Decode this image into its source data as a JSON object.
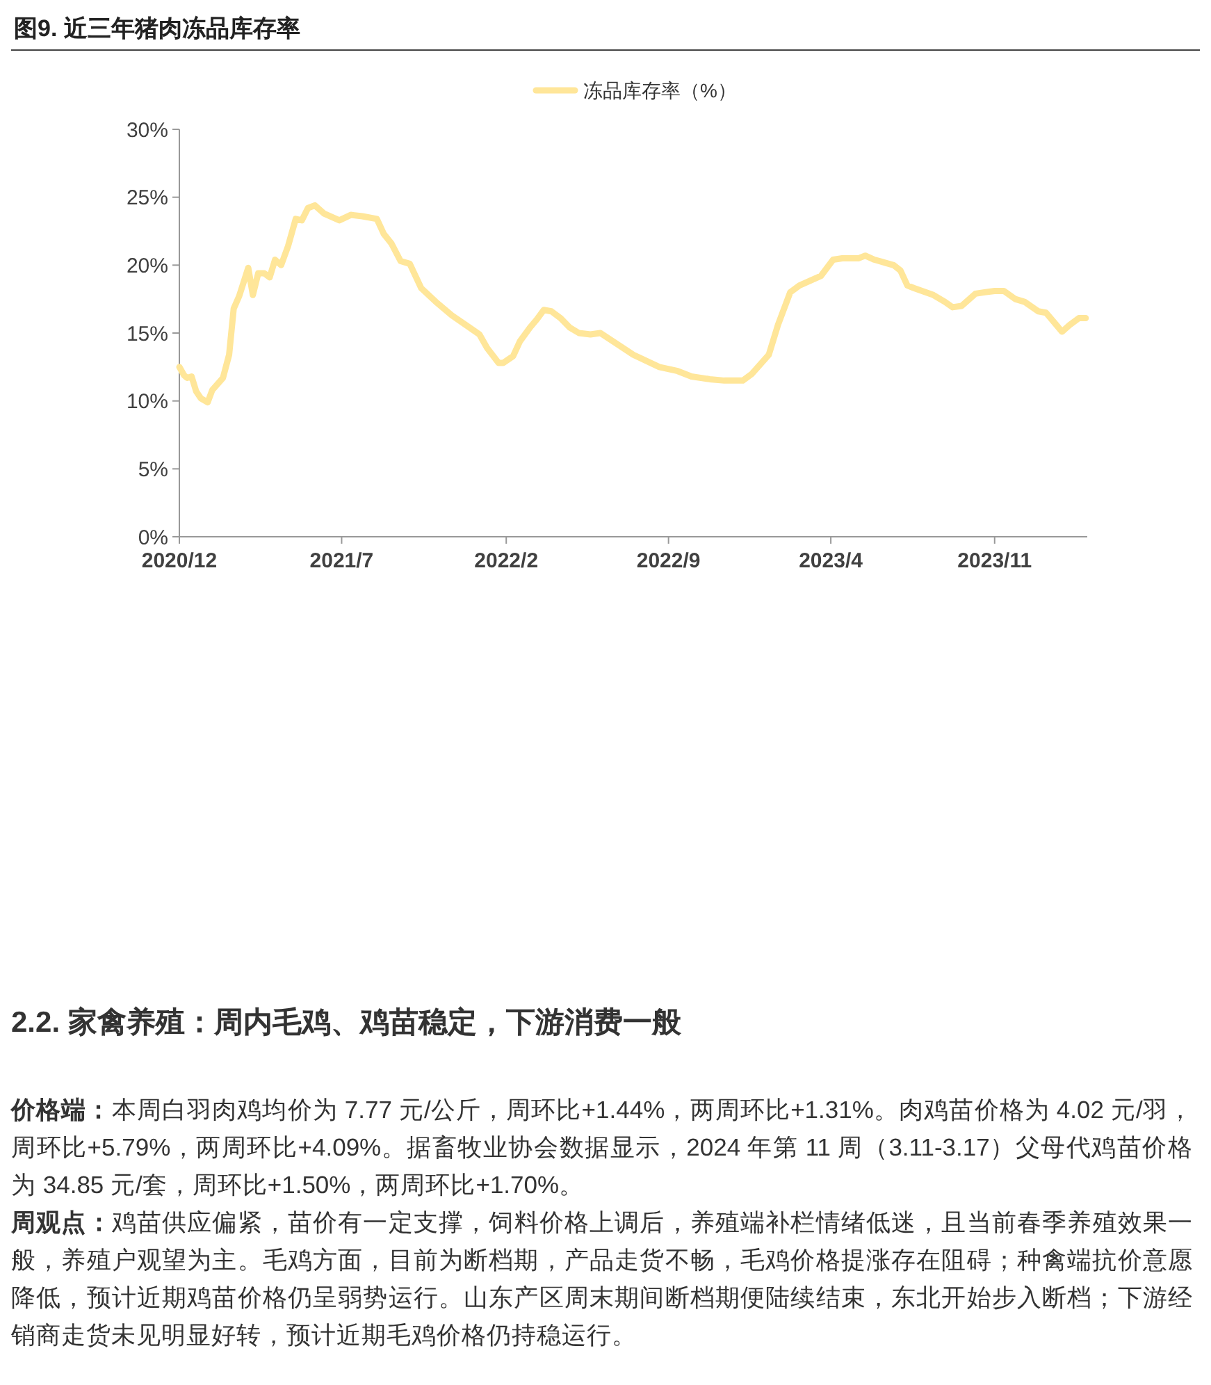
{
  "chart_data": {
    "type": "line",
    "title": "图9. 近三年猪肉冻品库存率",
    "x": [
      "2020-12-01",
      "2020-12-07",
      "2020-12-11",
      "2020-12-17",
      "2020-12-23",
      "2020-12-29",
      "2021-01-07",
      "2021-01-13",
      "2021-01-27",
      "2021-02-04",
      "2021-02-10",
      "2021-02-17",
      "2021-03-01",
      "2021-03-07",
      "2021-03-14",
      "2021-03-22",
      "2021-03-29",
      "2021-04-05",
      "2021-04-13",
      "2021-04-22",
      "2021-05-02",
      "2021-05-10",
      "2021-05-18",
      "2021-05-27",
      "2021-06-08",
      "2021-06-28",
      "2021-07-13",
      "2021-07-28",
      "2021-08-16",
      "2021-08-25",
      "2021-09-04",
      "2021-09-16",
      "2021-09-28",
      "2021-10-13",
      "2021-11-01",
      "2021-11-22",
      "2021-12-10",
      "2021-12-28",
      "2022-01-07",
      "2022-01-22",
      "2022-01-28",
      "2022-02-10",
      "2022-02-19",
      "2022-03-04",
      "2022-03-13",
      "2022-03-22",
      "2022-04-01",
      "2022-04-13",
      "2022-04-25",
      "2022-05-07",
      "2022-05-22",
      "2022-06-04",
      "2022-06-23",
      "2022-07-17",
      "2022-08-20",
      "2022-09-13",
      "2022-10-01",
      "2022-10-25",
      "2022-11-13",
      "2022-12-07",
      "2022-12-19",
      "2023-01-10",
      "2023-01-22",
      "2023-02-07",
      "2023-02-19",
      "2023-03-19",
      "2023-04-04",
      "2023-04-16",
      "2023-05-07",
      "2023-05-16",
      "2023-05-28",
      "2023-06-22",
      "2023-07-01",
      "2023-07-10",
      "2023-07-19",
      "2023-08-13",
      "2023-08-28",
      "2023-09-07",
      "2023-09-19",
      "2023-10-07",
      "2023-10-19",
      "2023-11-01",
      "2023-11-13",
      "2023-11-28",
      "2023-12-10",
      "2023-12-28",
      "2024-01-07",
      "2024-01-28",
      "2024-02-07",
      "2024-02-19",
      "2024-02-28"
    ],
    "series": [
      {
        "name": "冻品库存率（%）",
        "color": "#ffe699",
        "values": [
          12.5,
          11.9,
          11.7,
          11.8,
          10.7,
          10.2,
          9.9,
          10.8,
          11.7,
          13.4,
          16.8,
          17.7,
          19.8,
          17.8,
          19.4,
          19.4,
          19.1,
          20.4,
          20.0,
          21.4,
          23.4,
          23.3,
          24.2,
          24.4,
          23.8,
          23.3,
          23.7,
          23.6,
          23.4,
          22.3,
          21.6,
          20.3,
          20.1,
          18.3,
          17.3,
          16.3,
          15.6,
          14.9,
          13.9,
          12.8,
          12.8,
          13.3,
          14.4,
          15.4,
          16.0,
          16.7,
          16.6,
          16.1,
          15.4,
          15.0,
          14.9,
          15.0,
          14.3,
          13.4,
          12.5,
          12.2,
          11.8,
          11.6,
          11.5,
          11.5,
          12.0,
          13.4,
          15.6,
          18.0,
          18.5,
          19.2,
          20.4,
          20.5,
          20.5,
          20.7,
          20.4,
          20.0,
          19.6,
          18.5,
          18.3,
          17.8,
          17.3,
          16.9,
          17.0,
          17.9,
          18.0,
          18.1,
          18.1,
          17.5,
          17.3,
          16.6,
          16.5,
          15.1,
          15.6,
          16.1,
          16.1
        ]
      }
    ],
    "xlim": [
      "2020-12-01",
      "2024-03-01"
    ],
    "xticks": [
      {
        "value": "2020-12-01",
        "label": "2020/12"
      },
      {
        "value": "2021-07-01",
        "label": "2021/7"
      },
      {
        "value": "2022-02-01",
        "label": "2022/2"
      },
      {
        "value": "2022-09-01",
        "label": "2022/9"
      },
      {
        "value": "2023-04-01",
        "label": "2023/4"
      },
      {
        "value": "2023-11-01",
        "label": "2023/11"
      }
    ],
    "ylim": [
      0,
      30
    ],
    "yticks": [
      {
        "value": 0,
        "label": "0%"
      },
      {
        "value": 5,
        "label": "5%"
      },
      {
        "value": 10,
        "label": "10%"
      },
      {
        "value": 15,
        "label": "15%"
      },
      {
        "value": 20,
        "label": "20%"
      },
      {
        "value": 25,
        "label": "25%"
      },
      {
        "value": 30,
        "label": "30%"
      }
    ],
    "grid": false,
    "legend": "top",
    "marker": "none",
    "line_style": "solid",
    "annotations": [
      "2.2. 家禽养殖：周内毛鸡、鸡苗稳定，下游消费一般",
      "价格端：本周白羽肉鸡均价为 7.77 元/公斤，周环比+1.44%，两周环比+1.31%。肉鸡苗价格为 4.02 元/羽，周环比+5.79%，两周环比+4.09%。据畜牧业协会数据显示，2024 年第 11 周（3.11-3.17）父母代鸡苗价格为 34.85 元/套，周环比+1.50%，两周环比+1.70%。",
      "周观点：鸡苗供应偏紧，苗价有一定支撑，饲料价格上调后，养殖端补栏情绪低迷，且当前春季养殖效果一般，养殖户观望为主。毛鸡方面，目前为断档期，产品走货不畅，毛鸡价格提涨存在阻碍；种禽端抗价意愿降低，预计近期鸡苗价格仍呈弱势运行。山东产区周末期间断档期便陆续结束，东北开始步入断档；下游经销商走货未见明显好转，预计近期毛鸡价格仍持稳运行。"
    ]
  }
}
